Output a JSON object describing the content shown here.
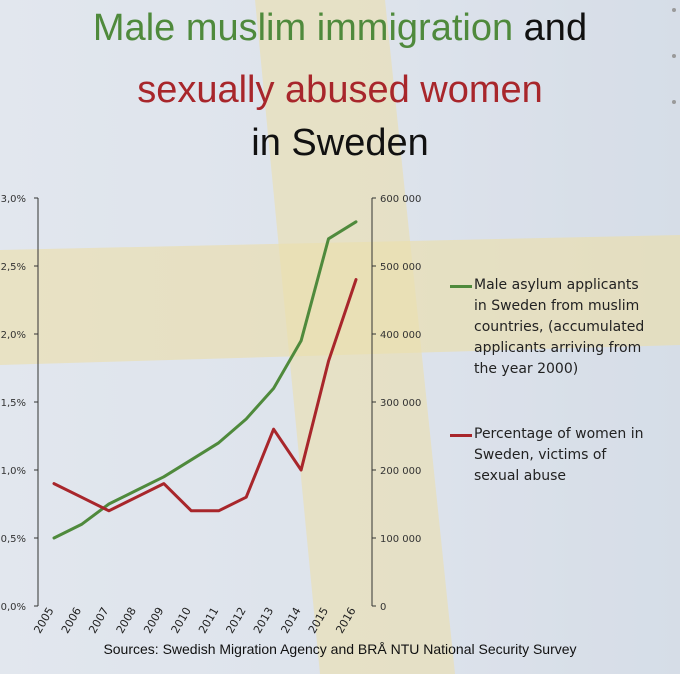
{
  "title": {
    "line1_green": "Male muslim immigration",
    "line1_dark": "and",
    "line2_red": "sexually abused women",
    "line3": "in Sweden"
  },
  "colors": {
    "green": "#4f8a3c",
    "red": "#a8262b",
    "flag_blue": "#bcc8da",
    "flag_yellow": "#e4d38e"
  },
  "chart_data": {
    "type": "line",
    "x": [
      "2005",
      "2006",
      "2007",
      "2008",
      "2009",
      "2010",
      "2011",
      "2012",
      "2013",
      "2014",
      "2015",
      "2016"
    ],
    "y_left": {
      "ticks": [
        "0,0%",
        "0,5%",
        "1,0%",
        "1,5%",
        "2,0%",
        "2,5%",
        "3,0%"
      ],
      "range": [
        0,
        3.0
      ]
    },
    "y_right": {
      "ticks": [
        "0",
        "100 000",
        "200 000",
        "300 000",
        "400 000",
        "500 000",
        "600 000"
      ],
      "range": [
        0,
        600000
      ]
    },
    "series": [
      {
        "name": "Male asylum applicants in Sweden from muslim countries, (accumulated applicants arriving from the year 2000)",
        "axis": "right",
        "color": "#4f8a3c",
        "values": [
          100000,
          120000,
          150000,
          170000,
          190000,
          215000,
          240000,
          275000,
          320000,
          390000,
          540000,
          565000
        ]
      },
      {
        "name": "Percentage of women in Sweden, victims of sexual abuse",
        "axis": "left",
        "color": "#a8262b",
        "values": [
          0.9,
          0.8,
          0.7,
          0.8,
          0.9,
          0.7,
          0.7,
          0.8,
          1.3,
          1.0,
          1.8,
          2.4
        ]
      }
    ],
    "legend_placement": "right",
    "grid": false
  },
  "legend": {
    "item1": "Male asylum applicants in Sweden from muslim countries, (accumulated applicants arriving from the year 2000)",
    "item2": "Percentage of women in Sweden, victims of sexual abuse"
  },
  "source": "Sources: Swedish Migration Agency and BRÅ NTU National Security Survey"
}
